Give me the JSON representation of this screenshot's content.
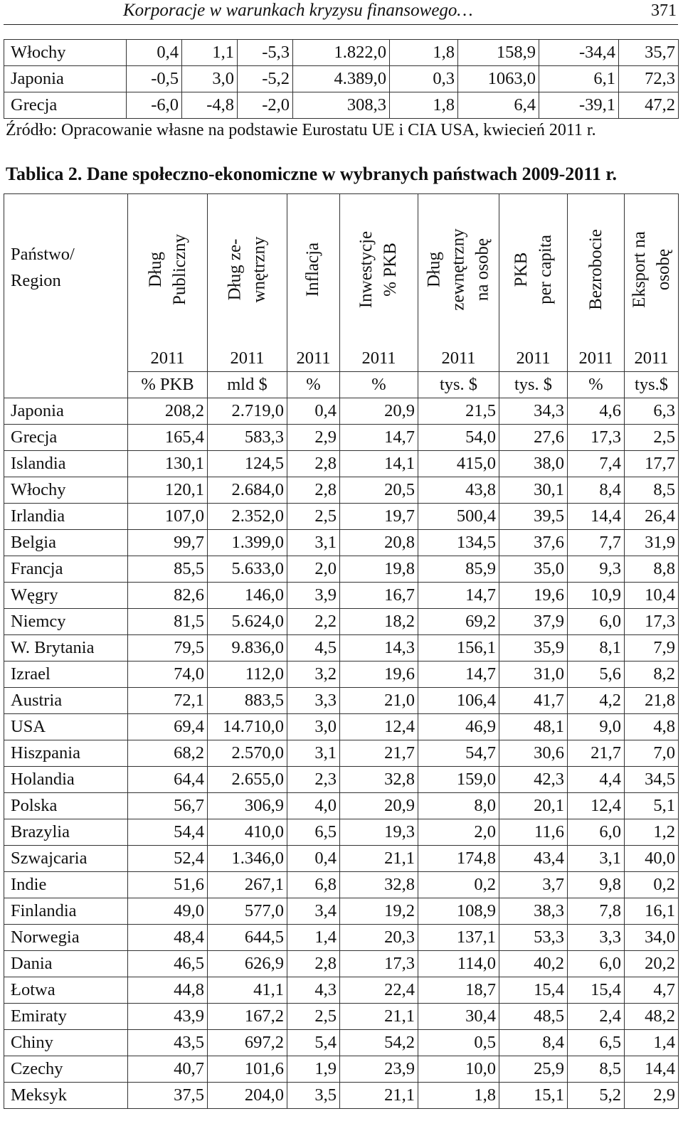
{
  "page_header": {
    "title": "Korporacje w warunkach kryzysu finansowego…",
    "page_number": "371"
  },
  "top_table": {
    "rows": [
      [
        "Włochy",
        "0,4",
        "1,1",
        "-5,3",
        "1.822,0",
        "1,8",
        "158,9",
        "-34,4",
        "35,7"
      ],
      [
        "Japonia",
        "-0,5",
        "3,0",
        "-5,2",
        "4.389,0",
        "0,3",
        "1063,0",
        "6,1",
        "72,3"
      ],
      [
        "Grecja",
        "-6,0",
        "-4,8",
        "-2,0",
        "308,3",
        "1,8",
        "6,4",
        "-39,1",
        "47,2"
      ]
    ]
  },
  "source_note": "Źródło: Opracowanie własne na podstawie Eurostatu UE i CIA USA,   kwiecień 2011 r.",
  "table_title": "Tablica 2. Dane społeczno-ekonomiczne w wybranych państwach 2009-2011 r.",
  "main_table": {
    "state_header_line1": "Państwo/",
    "state_header_line2": "Region",
    "columns": [
      {
        "line1": "Dług",
        "line2": "Publiczny",
        "year": "2011",
        "unit": "% PKB"
      },
      {
        "line1": "Dług ze-",
        "line2": "wnętrzny",
        "year": "2011",
        "unit": "mld $"
      },
      {
        "line1": "Inflacja",
        "line2": "",
        "year": "2011",
        "unit": "%"
      },
      {
        "line1": "Inwestycje",
        "line2": "% PKB",
        "year": "2011",
        "unit": "%"
      },
      {
        "line1": "Dług",
        "line2": "zewnętrzny",
        "line3": "na osobę",
        "year": "2011",
        "unit": "tys. $"
      },
      {
        "line1": "PKB",
        "line2": "per capita",
        "year": "2011",
        "unit": "tys. $"
      },
      {
        "line1": "Bezrobocie",
        "line2": "",
        "year": "2011",
        "unit": "%"
      },
      {
        "line1": "Eksport na",
        "line2": "osobę",
        "year": "2011",
        "unit": "tys.$"
      }
    ],
    "rows": [
      [
        "Japonia",
        "208,2",
        "2.719,0",
        "0,4",
        "20,9",
        "21,5",
        "34,3",
        "4,6",
        "6,3"
      ],
      [
        "Grecja",
        "165,4",
        "583,3",
        "2,9",
        "14,7",
        "54,0",
        "27,6",
        "17,3",
        "2,5"
      ],
      [
        "Islandia",
        "130,1",
        "124,5",
        "2,8",
        "14,1",
        "415,0",
        "38,0",
        "7,4",
        "17,7"
      ],
      [
        "Włochy",
        "120,1",
        "2.684,0",
        "2,8",
        "20,5",
        "43,8",
        "30,1",
        "8,4",
        "8,5"
      ],
      [
        "Irlandia",
        "107,0",
        "2.352,0",
        "2,5",
        "19,7",
        "500,4",
        "39,5",
        "14,4",
        "26,4"
      ],
      [
        "Belgia",
        "99,7",
        "1.399,0",
        "3,1",
        "20,8",
        "134,5",
        "37,6",
        "7,7",
        "31,9"
      ],
      [
        "Francja",
        "85,5",
        "5.633,0",
        "2,0",
        "19,8",
        "85,9",
        "35,0",
        "9,3",
        "8,8"
      ],
      [
        "Węgry",
        "82,6",
        "146,0",
        "3,9",
        "16,7",
        "14,7",
        "19,6",
        "10,9",
        "10,4"
      ],
      [
        "Niemcy",
        "81,5",
        "5.624,0",
        "2,2",
        "18,2",
        "69,2",
        "37,9",
        "6,0",
        "17,3"
      ],
      [
        "W. Brytania",
        "79,5",
        "9.836,0",
        "4,5",
        "14,3",
        "156,1",
        "35,9",
        "8,1",
        "7,9"
      ],
      [
        "Izrael",
        "74,0",
        "112,0",
        "3,2",
        "19,6",
        "14,7",
        "31,0",
        "5,6",
        "8,2"
      ],
      [
        "Austria",
        "72,1",
        "883,5",
        "3,3",
        "21,0",
        "106,4",
        "41,7",
        "4,2",
        "21,8"
      ],
      [
        "USA",
        "69,4",
        "14.710,0",
        "3,0",
        "12,4",
        "46,9",
        "48,1",
        "9,0",
        "4,8"
      ],
      [
        "Hiszpania",
        "68,2",
        "2.570,0",
        "3,1",
        "21,7",
        "54,7",
        "30,6",
        "21,7",
        "7,0"
      ],
      [
        "Holandia",
        "64,4",
        "2.655,0",
        "2,3",
        "32,8",
        "159,0",
        "42,3",
        "4,4",
        "34,5"
      ],
      [
        "Polska",
        "56,7",
        "306,9",
        "4,0",
        "20,9",
        "8,0",
        "20,1",
        "12,4",
        "5,1"
      ],
      [
        "Brazylia",
        "54,4",
        "410,0",
        "6,5",
        "19,3",
        "2,0",
        "11,6",
        "6,0",
        "1,2"
      ],
      [
        "Szwajcaria",
        "52,4",
        "1.346,0",
        "0,4",
        "21,1",
        "174,8",
        "43,4",
        "3,1",
        "40,0"
      ],
      [
        "Indie",
        "51,6",
        "267,1",
        "6,8",
        "32,8",
        "0,2",
        "3,7",
        "9,8",
        "0,2"
      ],
      [
        "Finlandia",
        "49,0",
        "577,0",
        "3,4",
        "19,2",
        "108,9",
        "38,3",
        "7,8",
        "16,1"
      ],
      [
        "Norwegia",
        "48,4",
        "644,5",
        "1,4",
        "20,3",
        "137,1",
        "53,3",
        "3,3",
        "34,0"
      ],
      [
        "Dania",
        "46,5",
        "626,9",
        "2,8",
        "17,3",
        "114,0",
        "40,2",
        "6,0",
        "20,2"
      ],
      [
        "Łotwa",
        "44,8",
        "41,1",
        "4,3",
        "22,4",
        "18,7",
        "15,4",
        "15,4",
        "4,7"
      ],
      [
        "Emiraty",
        "43,9",
        "167,2",
        "2,5",
        "21,1",
        "30,4",
        "48,5",
        "2,4",
        "48,2"
      ],
      [
        "Chiny",
        "43,5",
        "697,2",
        "5,4",
        "54,2",
        "0,5",
        "8,4",
        "6,5",
        "1,4"
      ],
      [
        "Czechy",
        "40,7",
        "101,6",
        "1,9",
        "23,9",
        "10,0",
        "25,9",
        "8,5",
        "14,4"
      ],
      [
        "Meksyk",
        "37,5",
        "204,0",
        "3,5",
        "21,1",
        "1,8",
        "15,1",
        "5,2",
        "2,9"
      ]
    ]
  }
}
